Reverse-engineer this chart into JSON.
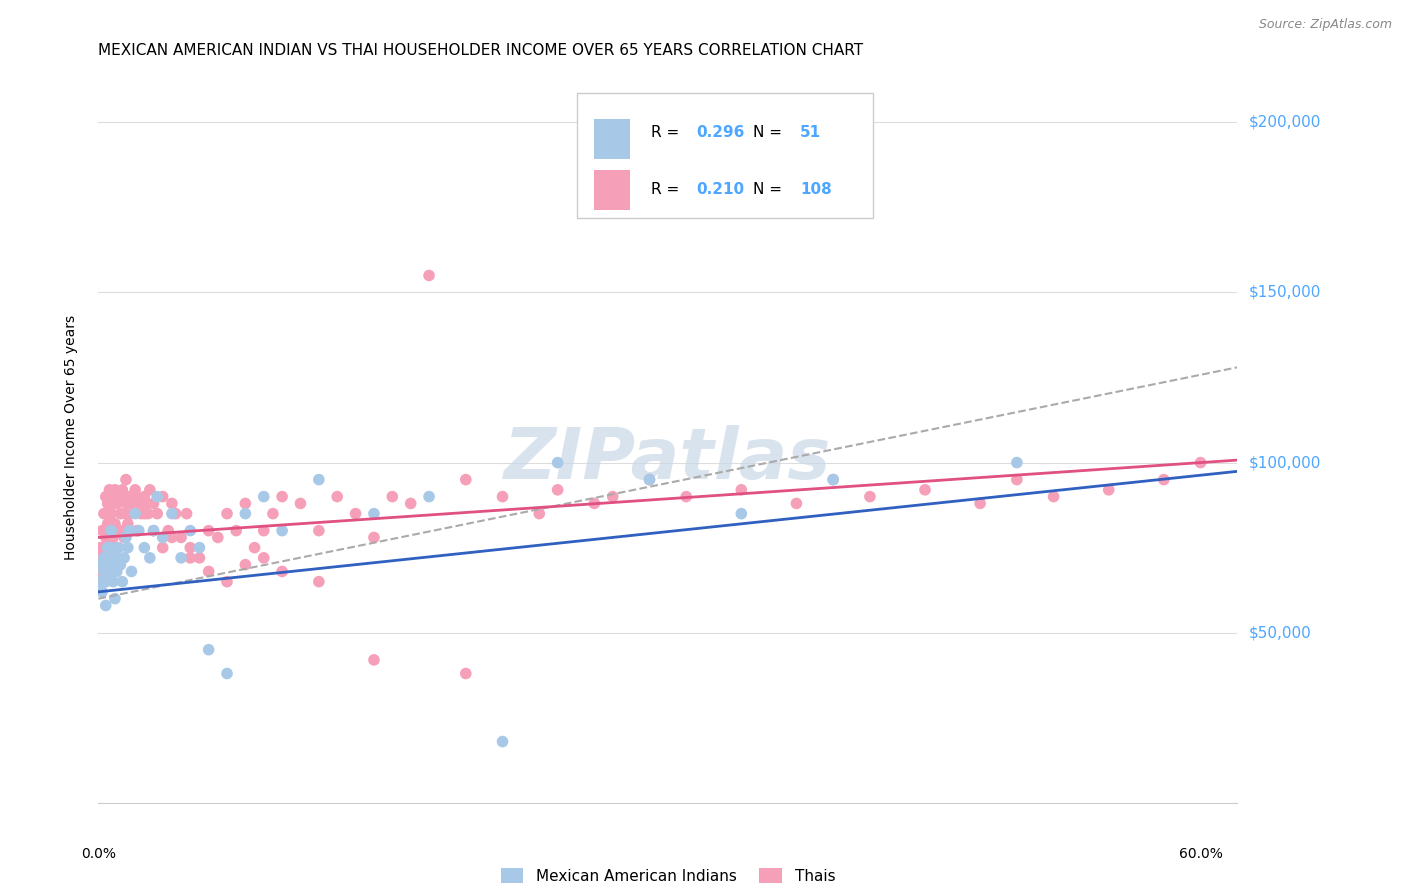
{
  "title": "MEXICAN AMERICAN INDIAN VS THAI HOUSEHOLDER INCOME OVER 65 YEARS CORRELATION CHART",
  "source": "Source: ZipAtlas.com",
  "ylabel": "Householder Income Over 65 years",
  "r_blue": 0.296,
  "n_blue": 51,
  "r_pink": 0.21,
  "n_pink": 108,
  "y_tick_labels": [
    "$50,000",
    "$100,000",
    "$150,000",
    "$200,000"
  ],
  "y_tick_values": [
    50000,
    100000,
    150000,
    200000
  ],
  "blue_color": "#a8c8e8",
  "pink_color": "#f5a0b8",
  "blue_line_color": "#3060c0",
  "pink_line_color": "#e05080",
  "dashed_line_color": "#aaaaaa",
  "right_tick_color": "#4da6ff",
  "legend_text_color": "#4da6ff",
  "watermark": "ZIPatlas",
  "watermark_color": "#c8d8e8",
  "xlim_min": 0.0,
  "xlim_max": 0.62,
  "ylim_min": 0,
  "ylim_max": 215000,
  "blue_scatter_x": [
    0.001,
    0.002,
    0.002,
    0.003,
    0.003,
    0.004,
    0.004,
    0.005,
    0.005,
    0.006,
    0.006,
    0.007,
    0.007,
    0.008,
    0.008,
    0.009,
    0.01,
    0.01,
    0.011,
    0.012,
    0.013,
    0.014,
    0.015,
    0.016,
    0.017,
    0.018,
    0.02,
    0.022,
    0.025,
    0.028,
    0.03,
    0.032,
    0.035,
    0.04,
    0.045,
    0.05,
    0.055,
    0.06,
    0.07,
    0.08,
    0.09,
    0.1,
    0.12,
    0.15,
    0.18,
    0.22,
    0.25,
    0.3,
    0.35,
    0.4,
    0.5
  ],
  "blue_scatter_y": [
    65000,
    62000,
    70000,
    68000,
    72000,
    65000,
    58000,
    70000,
    75000,
    68000,
    72000,
    75000,
    80000,
    65000,
    70000,
    60000,
    72000,
    68000,
    75000,
    70000,
    65000,
    72000,
    78000,
    75000,
    80000,
    68000,
    85000,
    80000,
    75000,
    72000,
    80000,
    90000,
    78000,
    85000,
    72000,
    80000,
    75000,
    45000,
    38000,
    85000,
    90000,
    80000,
    95000,
    85000,
    90000,
    18000,
    100000,
    95000,
    85000,
    95000,
    100000
  ],
  "pink_scatter_x": [
    0.001,
    0.001,
    0.002,
    0.002,
    0.003,
    0.003,
    0.004,
    0.004,
    0.005,
    0.005,
    0.006,
    0.006,
    0.007,
    0.007,
    0.008,
    0.008,
    0.009,
    0.009,
    0.01,
    0.01,
    0.011,
    0.012,
    0.013,
    0.014,
    0.015,
    0.015,
    0.016,
    0.017,
    0.018,
    0.019,
    0.02,
    0.021,
    0.022,
    0.023,
    0.025,
    0.026,
    0.027,
    0.028,
    0.03,
    0.032,
    0.035,
    0.038,
    0.04,
    0.042,
    0.045,
    0.048,
    0.05,
    0.055,
    0.06,
    0.065,
    0.07,
    0.075,
    0.08,
    0.085,
    0.09,
    0.095,
    0.1,
    0.11,
    0.12,
    0.13,
    0.14,
    0.15,
    0.16,
    0.17,
    0.18,
    0.2,
    0.22,
    0.24,
    0.25,
    0.27,
    0.28,
    0.3,
    0.32,
    0.35,
    0.38,
    0.4,
    0.42,
    0.45,
    0.48,
    0.5,
    0.52,
    0.55,
    0.58,
    0.6,
    0.002,
    0.003,
    0.004,
    0.005,
    0.006,
    0.008,
    0.01,
    0.012,
    0.015,
    0.018,
    0.02,
    0.025,
    0.03,
    0.035,
    0.04,
    0.05,
    0.06,
    0.07,
    0.08,
    0.09,
    0.1,
    0.12,
    0.15,
    0.2
  ],
  "pink_scatter_y": [
    68000,
    75000,
    72000,
    80000,
    70000,
    85000,
    78000,
    90000,
    82000,
    88000,
    75000,
    92000,
    80000,
    85000,
    88000,
    78000,
    92000,
    82000,
    88000,
    75000,
    90000,
    85000,
    92000,
    78000,
    88000,
    95000,
    82000,
    90000,
    85000,
    88000,
    92000,
    80000,
    88000,
    85000,
    90000,
    88000,
    85000,
    92000,
    88000,
    85000,
    90000,
    80000,
    88000,
    85000,
    78000,
    85000,
    75000,
    72000,
    80000,
    78000,
    85000,
    80000,
    88000,
    75000,
    80000,
    85000,
    90000,
    88000,
    80000,
    90000,
    85000,
    78000,
    90000,
    88000,
    155000,
    95000,
    90000,
    85000,
    92000,
    88000,
    90000,
    95000,
    90000,
    92000,
    88000,
    95000,
    90000,
    92000,
    88000,
    95000,
    90000,
    92000,
    95000,
    100000,
    72000,
    75000,
    80000,
    78000,
    82000,
    88000,
    90000,
    80000,
    85000,
    88000,
    90000,
    85000,
    80000,
    75000,
    78000,
    72000,
    68000,
    65000,
    70000,
    72000,
    68000,
    65000,
    42000,
    38000
  ]
}
